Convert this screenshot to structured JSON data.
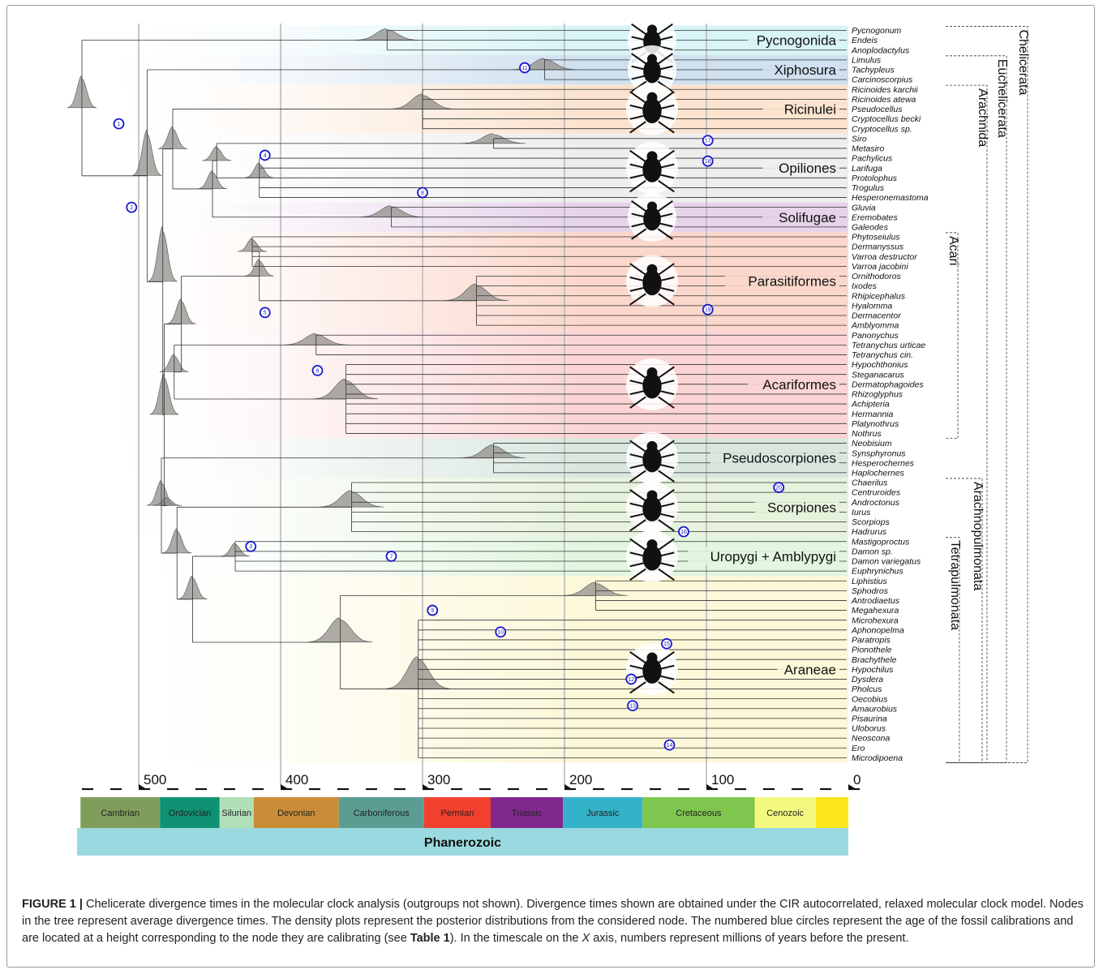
{
  "figure": {
    "label": "FIGURE 1 |",
    "caption_part1": " Chelicerate divergence times in the molecular clock analysis (outgroups not shown). Divergence times shown are obtained under the CIR autocorrelated, relaxed molecular clock model. Nodes in the tree represent average divergence times. The density plots represent the posterior distributions from the considered node. The numbered blue circles represent the age of the fossil calibrations and are located at a height corresponding to the node they are calibrating (see ",
    "caption_table_ref": "Table 1",
    "caption_part2": "). In the timescale on the ",
    "caption_axis_letter": "X",
    "caption_part3": " axis, numbers represent millions of years before the present."
  },
  "taxa": [
    "Pycnogonum",
    "Endeis",
    "Anoplodactylus",
    "Limulus",
    "Tachypleus",
    "Carcinoscorpius",
    "Ricinoides karchii",
    "Ricinoides atewa",
    "Pseudocellus",
    "Cryptocellus becki",
    "Cryptocellus sp.",
    "Siro",
    "Metasiro",
    "Pachylicus",
    "Larifuga",
    "Protolophus",
    "Trogulus",
    "Hesperonemastoma",
    "Gluvia",
    "Eremobates",
    "Galeodes",
    "Phytoseiulus",
    "Dermanyssus",
    "Varroa destructor",
    "Varroa jacobini",
    "Ornithodoros",
    "Ixodes",
    "Rhipicephalus",
    "Hyalomma",
    "Dermacentor",
    "Amblyomma",
    "Panonychus",
    "Tetranychus urticae",
    "Tetranychus cin.",
    "Hypochthonius",
    "Steganacarus",
    "Dermatophagoides",
    "Rhizoglyphus",
    "Achipteria",
    "Hermannia",
    "Platynothrus",
    "Nothrus",
    "Neobisium",
    "Synsphyronus",
    "Hesperochernes",
    "Haplochernes",
    "Chaerilus",
    "Centruroides",
    "Androctonus",
    "Iurus",
    "Scorpiops",
    "Hadrurus",
    "Mastigoproctus",
    "Damon sp.",
    "Damon variegatus",
    "Euphrynichus",
    "Liphistius",
    "Sphodros",
    "Antrodiaetus",
    "Megahexura",
    "Microhexura",
    "Aphonopelma",
    "Paratropis",
    "Pionothele",
    "Brachythele",
    "Hypochilus",
    "Dysdera",
    "Pholcus",
    "Oecobius",
    "Amaurobius",
    "Pisaurina",
    "Uloborus",
    "Neoscona",
    "Ero",
    "Microdipoena"
  ],
  "clades": [
    {
      "name": "Pycnogonida",
      "first": 0,
      "last": 2,
      "color": "#d8f4f6",
      "icon": "sea-spider-icon"
    },
    {
      "name": "Xiphosura",
      "first": 3,
      "last": 5,
      "color": "#cfe0ef",
      "icon": "horseshoe-crab-icon"
    },
    {
      "name": "Ricinulei",
      "first": 6,
      "last": 10,
      "color": "#fbe3cf",
      "icon": "ricinuleid-icon"
    },
    {
      "name": "Opiliones",
      "first": 11,
      "last": 17,
      "color": "#eeeeee",
      "icon": "harvestman-icon"
    },
    {
      "name": "Solifugae",
      "first": 18,
      "last": 20,
      "color": "#e6d3ea",
      "icon": "solifuge-icon"
    },
    {
      "name": "Parasitiformes",
      "first": 21,
      "last": 30,
      "color": "#fbd8cc",
      "icon": "tick-icon"
    },
    {
      "name": "Acariformes",
      "first": 31,
      "last": 41,
      "color": "#fbd5d6",
      "icon": "mite-icon"
    },
    {
      "name": "Pseudoscorpiones",
      "first": 42,
      "last": 45,
      "color": "#d9e7df",
      "icon": "pseudoscorpion-icon"
    },
    {
      "name": "Scorpiones",
      "first": 46,
      "last": 51,
      "color": "#e6f2dc",
      "icon": "scorpion-icon"
    },
    {
      "name": "Uropygi + Amblypygi",
      "first": 52,
      "last": 55,
      "color": "#e2f6e0",
      "icon": "whip-scorpion-icon"
    },
    {
      "name": "Araneae",
      "first": 56,
      "last": 74,
      "color": "#fcf8d9",
      "icon": "spider-icon"
    }
  ],
  "higher_groups": [
    {
      "name": "Chelicerata",
      "first": 0,
      "last": 74
    },
    {
      "name": "Euchelicerata",
      "first": 3,
      "last": 74
    },
    {
      "name": "Arachnida",
      "first": 6,
      "last": 74
    },
    {
      "name": "Acari",
      "first": 21,
      "last": 41
    },
    {
      "name": "Arachnopulmonata",
      "first": 46,
      "last": 74
    },
    {
      "name": "Tetrapulmonata",
      "first": 52,
      "last": 74
    }
  ],
  "axis": {
    "unit": "Ma",
    "max": 545,
    "tick_labels": [
      "500",
      "400",
      "300",
      "200",
      "100",
      "0"
    ],
    "tick_values": [
      500,
      400,
      300,
      200,
      100,
      0
    ]
  },
  "periods": [
    {
      "name": "Cambrian",
      "start": 541,
      "end": 485,
      "color": "#7f9e5b"
    },
    {
      "name": "Ordovician",
      "start": 485,
      "end": 443,
      "color": "#0f9173"
    },
    {
      "name": "Silurian",
      "start": 443,
      "end": 419,
      "color": "#b2deb8"
    },
    {
      "name": "Devonian",
      "start": 419,
      "end": 359,
      "color": "#cb8c37"
    },
    {
      "name": "Carboniferous",
      "start": 359,
      "end": 299,
      "color": "#5b9d92"
    },
    {
      "name": "Permian",
      "start": 299,
      "end": 252,
      "color": "#f0412f"
    },
    {
      "name": "Triassic",
      "start": 252,
      "end": 201,
      "color": "#81288f"
    },
    {
      "name": "Jurassic",
      "start": 201,
      "end": 145,
      "color": "#34b2c9"
    },
    {
      "name": "Cretaceous",
      "start": 145,
      "end": 66,
      "color": "#7fc64e"
    },
    {
      "name": "Cenozoic",
      "start": 66,
      "end": 23,
      "color": "#f2f97e"
    },
    {
      "name": "",
      "start": 23,
      "end": 0,
      "color": "#fde51b"
    }
  ],
  "eon": {
    "name": "Phanerozoic",
    "color": "#9ad9e0"
  },
  "calibrations": [
    {
      "num": "1",
      "age": 514,
      "row": 9.5
    },
    {
      "num": "2",
      "age": 505,
      "row": 18.0
    },
    {
      "num": "3",
      "age": 421,
      "row": 52.5
    },
    {
      "num": "4",
      "age": 411,
      "row": 12.7
    },
    {
      "num": "5",
      "age": 411,
      "row": 28.7
    },
    {
      "num": "6",
      "age": 374,
      "row": 34.6
    },
    {
      "num": "7",
      "age": 322,
      "row": 53.5
    },
    {
      "num": "8",
      "age": 300,
      "row": 16.5
    },
    {
      "num": "9",
      "age": 293,
      "row": 59.0
    },
    {
      "num": "10",
      "age": 245,
      "row": 61.2
    },
    {
      "num": "11",
      "age": 228,
      "row": 3.8
    },
    {
      "num": "12",
      "age": 153,
      "row": 66.0
    },
    {
      "num": "13",
      "age": 152,
      "row": 68.7
    },
    {
      "num": "14",
      "age": 126,
      "row": 72.7
    },
    {
      "num": "15",
      "age": 128,
      "row": 62.4
    },
    {
      "num": "16",
      "age": 116,
      "row": 51.0
    },
    {
      "num": "17",
      "age": 99,
      "row": 11.2
    },
    {
      "num": "18",
      "age": 99,
      "row": 13.3
    },
    {
      "num": "19",
      "age": 99,
      "row": 28.4
    },
    {
      "num": "20",
      "age": 49,
      "row": 46.5
    }
  ]
}
